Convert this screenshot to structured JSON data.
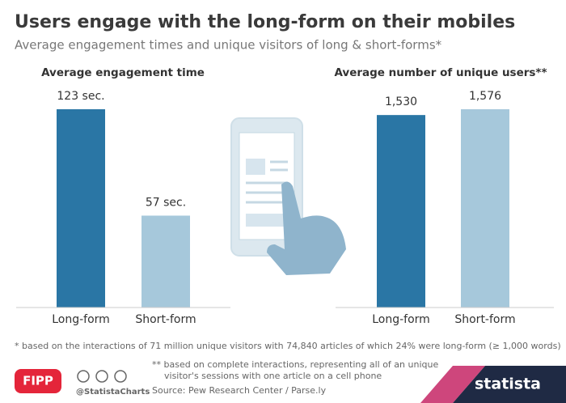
{
  "title": "Users engage with the long-form on their mobiles",
  "subtitle": "Average engagement times and unique visitors of long & short-forms*",
  "footnote_1": "* based on the interactions of 71 million unique visitors with 74,840 articles of which 24% were long-form (≥ 1,000 words)",
  "footnote_2": [
    "** based on complete interactions, representing all of an unique",
    "visitor's sessions with one article on a cell phone"
  ],
  "source": "Source: Pew Research Center / Parse.ly",
  "branding": {
    "fipp": "FIPP",
    "handle": "@StatistaCharts",
    "statista": "statista"
  },
  "chart_data": [
    {
      "type": "bar",
      "title": "Average engagement time",
      "categories": [
        "Long-form",
        "Short-form"
      ],
      "values": [
        123,
        57
      ],
      "value_labels": [
        "123 sec.",
        "57 sec."
      ],
      "colors": [
        "#2a76a5",
        "#a6c8db"
      ]
    },
    {
      "type": "bar",
      "title": "Average number of unique users**",
      "categories": [
        "Long-form",
        "Short-form"
      ],
      "values": [
        1530,
        1576
      ],
      "value_labels": [
        "1,530",
        "1,576"
      ],
      "colors": [
        "#2a76a5",
        "#a6c8db"
      ]
    }
  ]
}
